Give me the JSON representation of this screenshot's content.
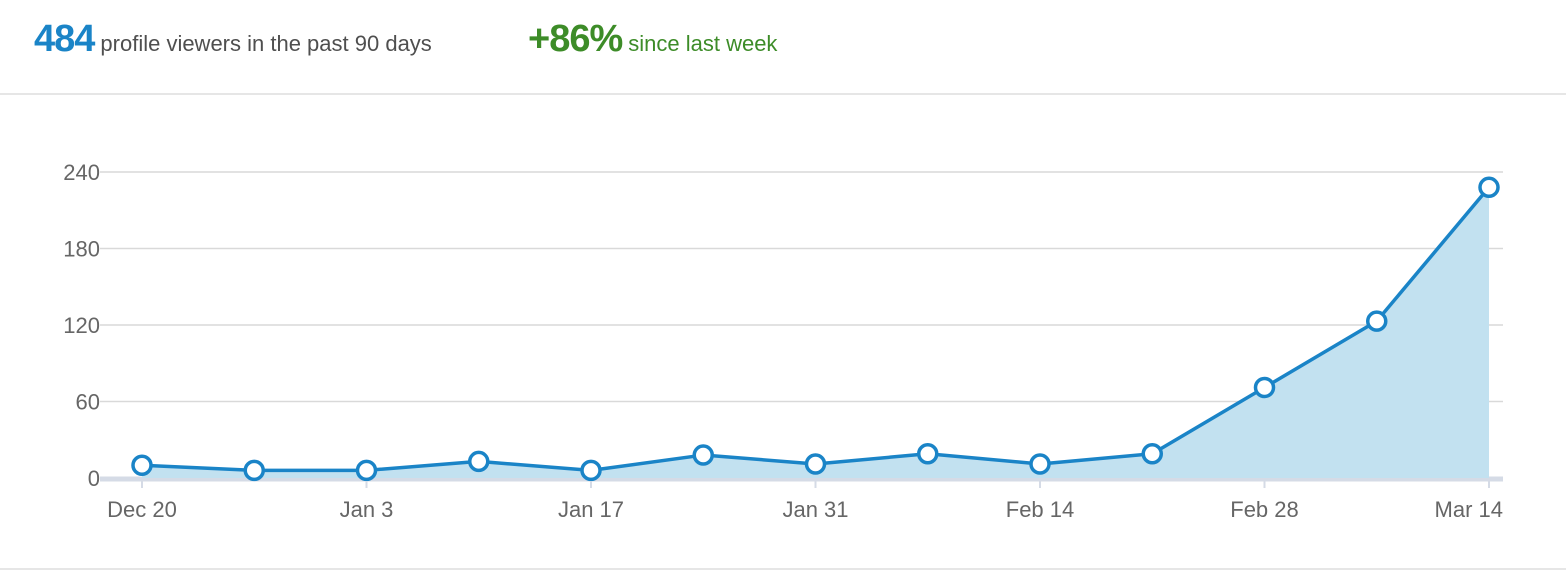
{
  "summary": {
    "viewers_count": "484",
    "viewers_text": "profile viewers in the past 90 days",
    "growth_value": "+86%",
    "growth_text": "since last week"
  },
  "colors": {
    "primary_blue": "#1a84c7",
    "growth_green": "#3d8c28",
    "area_fill": "#c2e1f0",
    "grid": "#d9d9d9"
  },
  "chart_data": {
    "type": "area",
    "x": [
      "Dec 20",
      "Dec 27",
      "Jan 3",
      "Jan 10",
      "Jan 17",
      "Jan 24",
      "Jan 31",
      "Feb 7",
      "Feb 14",
      "Feb 21",
      "Feb 28",
      "Mar 7",
      "Mar 14"
    ],
    "x_tick_labels": [
      "Dec 20",
      "Jan 3",
      "Jan 17",
      "Jan 31",
      "Feb 14",
      "Feb 28",
      "Mar 14"
    ],
    "series": [
      {
        "values": [
          10,
          6,
          6,
          13,
          6,
          18,
          11,
          19,
          11,
          19,
          71,
          123,
          228
        ]
      }
    ],
    "ylim": [
      0,
      240
    ],
    "y_ticks": [
      0,
      60,
      120,
      180,
      240
    ],
    "grid": true
  }
}
